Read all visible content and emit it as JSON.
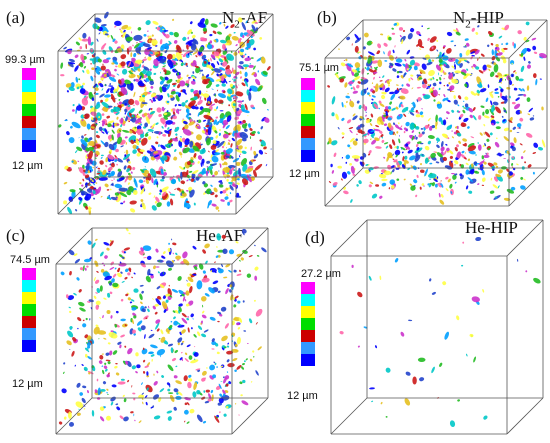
{
  "colors": {
    "colorbar": [
      "#ff00ff",
      "#00ffff",
      "#ffff00",
      "#00dd00",
      "#cc0000",
      "#3399ff",
      "#0000ff"
    ],
    "particles": [
      "#2244cc",
      "#00a0ff",
      "#cc1a1a",
      "#22bb22",
      "#e6c020",
      "#cc33cc",
      "#00c8c8",
      "#0000ff",
      "#ff66aa",
      "#ffff44"
    ]
  },
  "panels": {
    "a": {
      "label": "(a)",
      "title_main": "N",
      "title_sub": "2",
      "title_rest": "-AF",
      "max": "99.3 µm",
      "min": "12 µm",
      "density": "high"
    },
    "b": {
      "label": "(b)",
      "title_main": "N",
      "title_sub": "2",
      "title_rest": "-HIP",
      "max": "75.1 µm",
      "min": "12 µm",
      "density": "medium-high"
    },
    "c": {
      "label": "(c)",
      "title_main": "He-AF",
      "max": "74.5 µm",
      "min": "12 µm",
      "density": "medium"
    },
    "d": {
      "label": "(d)",
      "title_main": "He-HIP",
      "max": "27.2 µm",
      "min": "12 µm",
      "density": "sparse"
    }
  }
}
